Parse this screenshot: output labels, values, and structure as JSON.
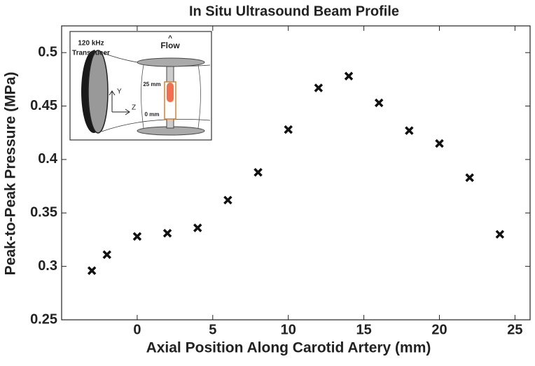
{
  "chart_data": {
    "type": "scatter",
    "title": "In Situ Ultrasound Beam Profile",
    "x_label": "Axial Position Along Carotid Artery (mm)",
    "y_label": "Peak-to-Peak Pressure (MPa)",
    "series": [
      {
        "color": "#111111",
        "x": [
          -3,
          -2,
          0,
          2,
          4,
          6,
          8,
          10,
          12,
          14,
          16,
          18,
          20,
          22,
          24
        ],
        "values": [
          0.296,
          0.311,
          0.328,
          0.331,
          0.336,
          0.362,
          0.388,
          0.428,
          0.467,
          0.478,
          0.453,
          0.427,
          0.415,
          0.383,
          0.33
        ]
      }
    ],
    "xlim": [
      -5,
      26
    ],
    "xticks": [
      0,
      5,
      10,
      15,
      20,
      25
    ],
    "ylim": [
      0.25,
      0.525
    ],
    "yticks": [
      0.25,
      0.3,
      0.35,
      0.4,
      0.45,
      0.5
    ],
    "grid": false
  },
  "inset": {
    "transducer": [
      "120 kHz",
      "Transducer"
    ],
    "flow": "Flow",
    "top_mark": "25 mm",
    "bottom_mark": "0 mm",
    "y_axis": "Y",
    "z_axis": "Z"
  }
}
